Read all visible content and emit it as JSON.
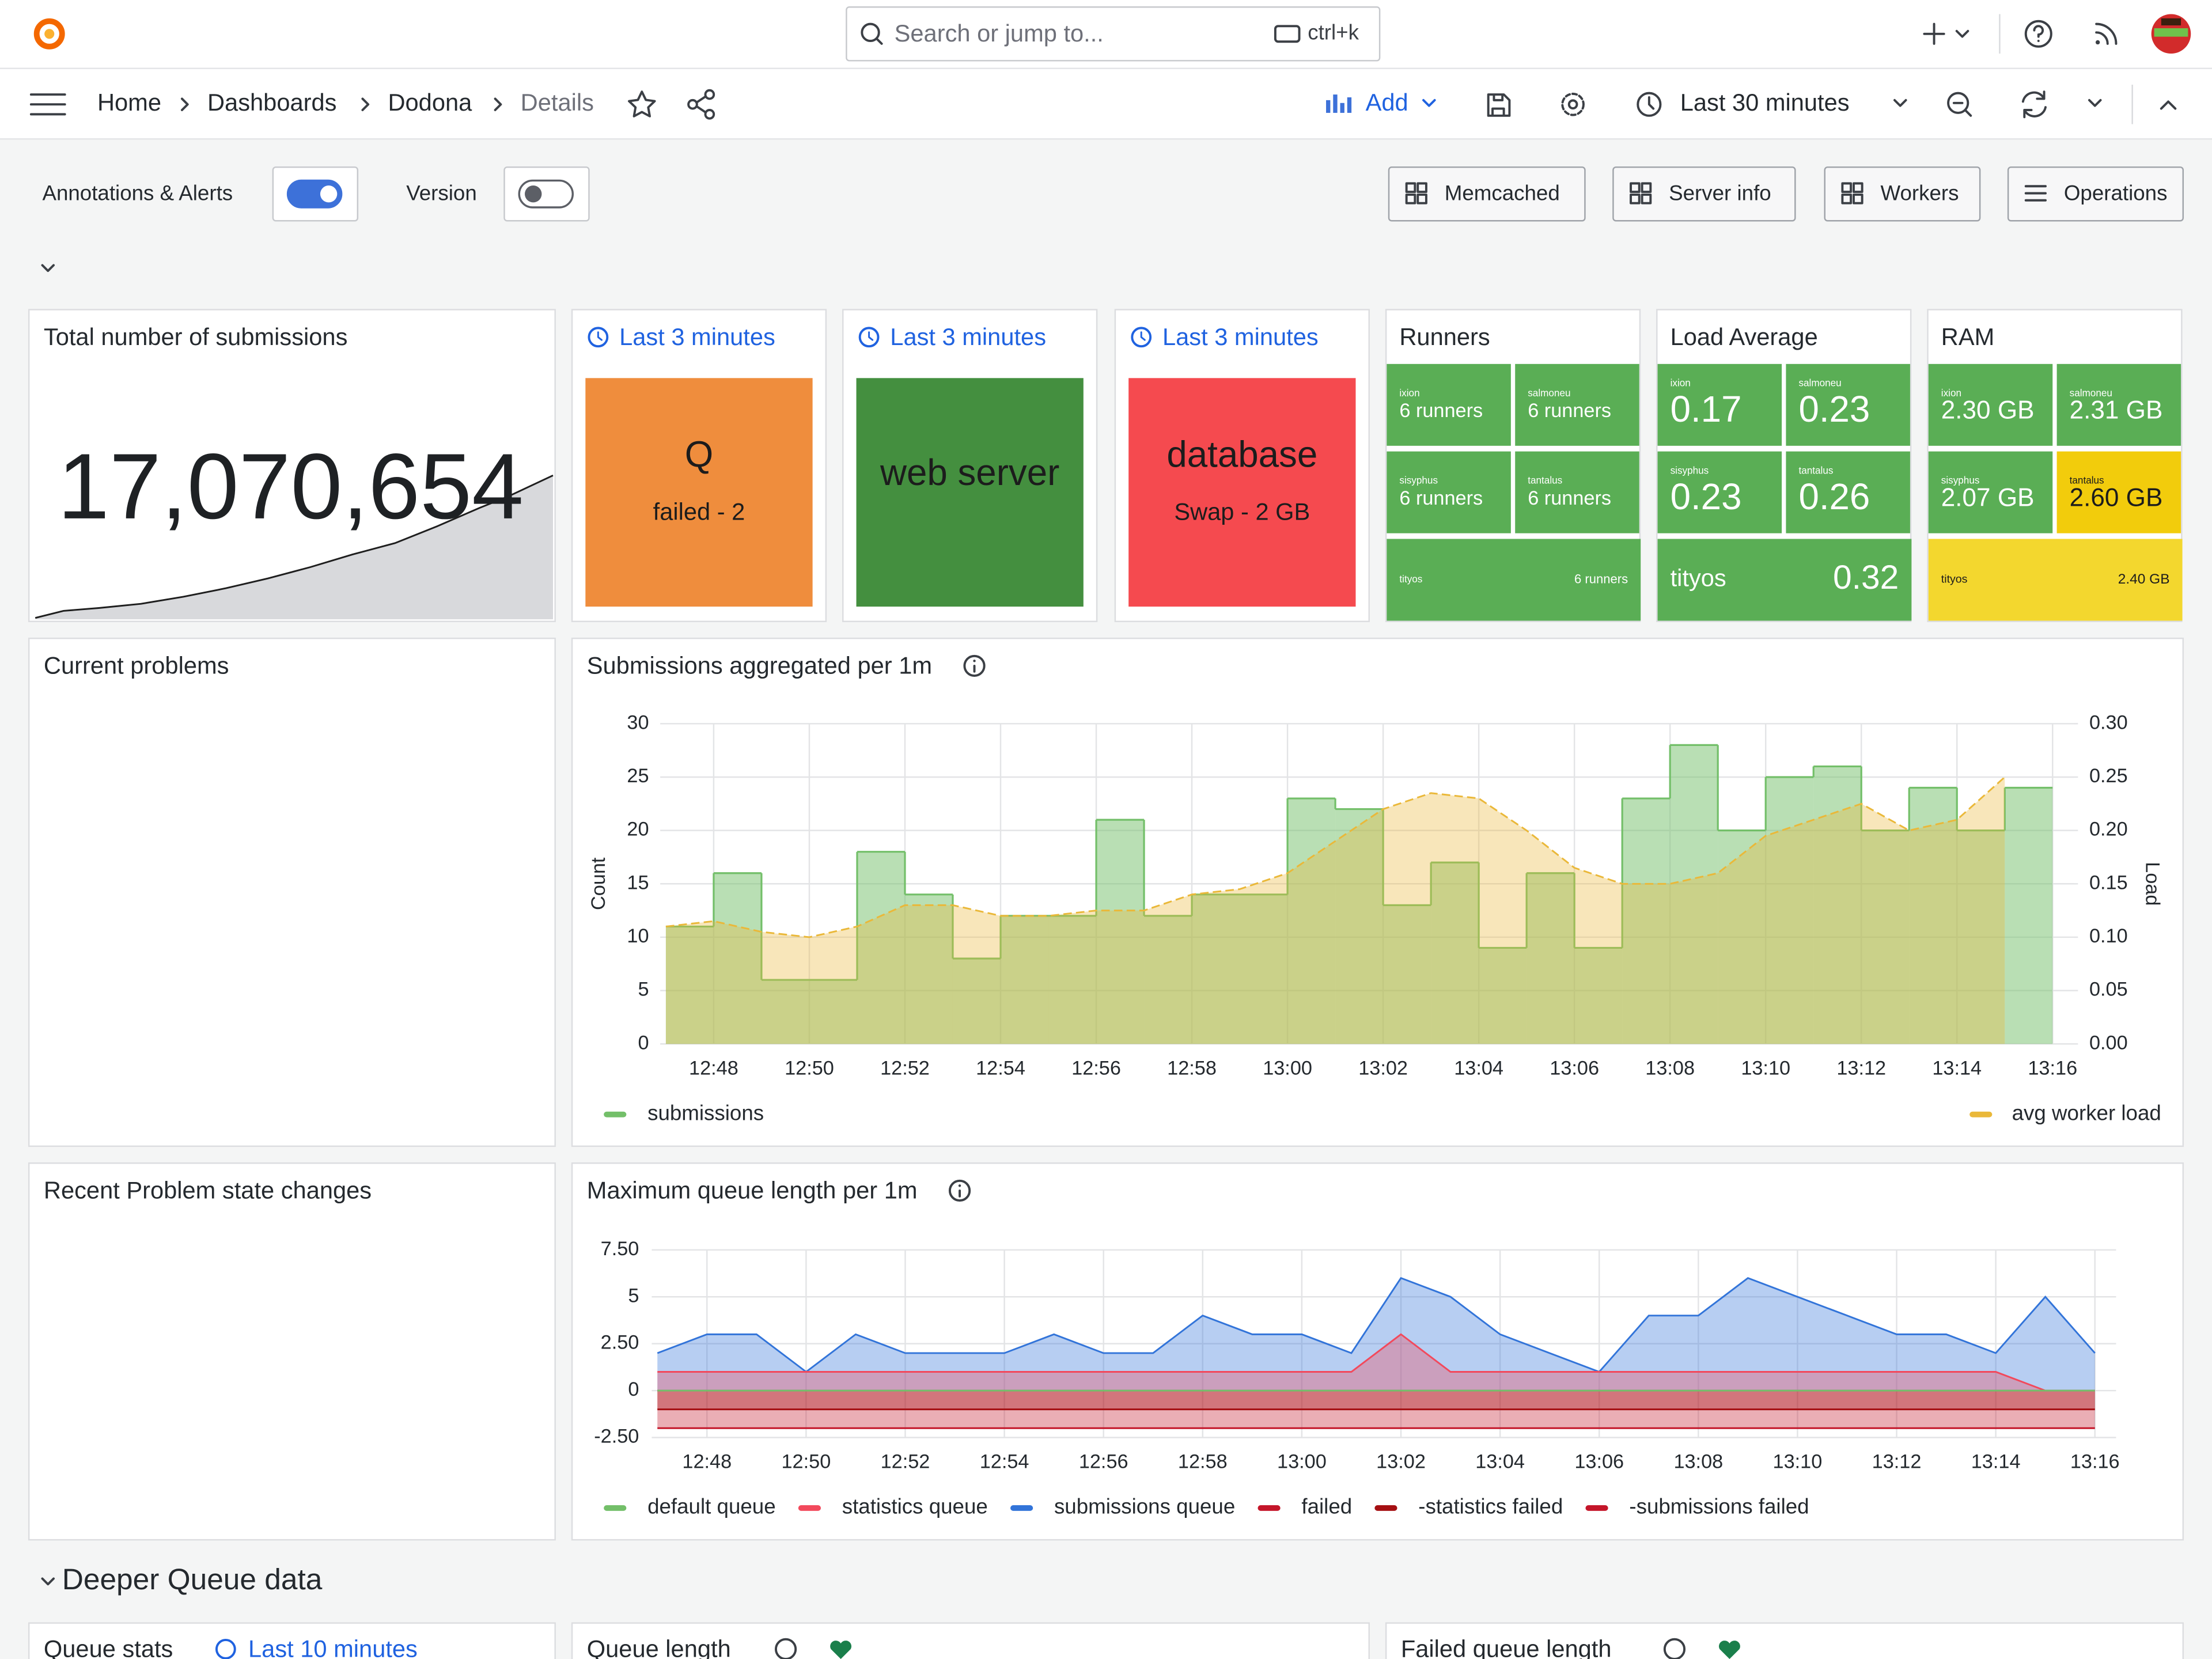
{
  "nav": {
    "search": "Search or jump to...",
    "shortcut": "ctrl+k",
    "breadcrumbs": [
      "Home",
      "Dashboards",
      "Dodona",
      "Details"
    ],
    "add": "Add",
    "time_range": "Last 30 minutes"
  },
  "controls": {
    "annotations": "Annotations & Alerts",
    "annotations_on": true,
    "version": "Version",
    "version_on": false,
    "links": [
      "Memcached",
      "Server info",
      "Workers",
      "Operations"
    ]
  },
  "total": {
    "title": "Total number of submissions",
    "value": "17,070,654"
  },
  "status": [
    {
      "title": "Last 3 minutes",
      "name": "Q",
      "detail": "failed - 2",
      "color": "#ef8d3d"
    },
    {
      "title": "Last 3 minutes",
      "name": "web server",
      "color": "#448f3f"
    },
    {
      "title": "Last 3 minutes",
      "name": "database",
      "detail": "Swap - 2 GB",
      "color": "#f54a4f"
    }
  ],
  "stats": [
    {
      "title": "Runners",
      "cells": [
        {
          "host": "ixion",
          "value": "6 runners",
          "color": "#5aae55"
        },
        {
          "host": "salmoneu",
          "value": "6 runners",
          "color": "#5aae55"
        },
        {
          "host": "sisyphus",
          "value": "6 runners",
          "color": "#5aae55"
        },
        {
          "host": "tantalus",
          "value": "6 runners",
          "color": "#5aae55"
        },
        {
          "host": "tityos",
          "value": "6 runners",
          "color": "#5aae55"
        }
      ]
    },
    {
      "title": "Load Average",
      "cells": [
        {
          "host": "ixion",
          "value": "0.17",
          "color": "#5aae55"
        },
        {
          "host": "salmoneu",
          "value": "0.23",
          "color": "#5aae55"
        },
        {
          "host": "sisyphus",
          "value": "0.23",
          "color": "#5aae55"
        },
        {
          "host": "tantalus",
          "value": "0.26",
          "color": "#5aae55"
        },
        {
          "host": "tityos",
          "value": "0.32",
          "color": "#5aae55"
        }
      ]
    },
    {
      "title": "RAM",
      "cells": [
        {
          "host": "ixion",
          "value": "2.30 GB",
          "color": "#5aae55"
        },
        {
          "host": "salmoneu",
          "value": "2.31 GB",
          "color": "#5aae55"
        },
        {
          "host": "sisyphus",
          "value": "2.07 GB",
          "color": "#5aae55"
        },
        {
          "host": "tantalus",
          "value": "2.60 GB",
          "color": "#f2cc0c"
        },
        {
          "host": "tityos",
          "value": "2.40 GB",
          "color": "#f3d72e"
        }
      ]
    }
  ],
  "problems": {
    "title": "Current problems"
  },
  "state_changes": {
    "title": "Recent Problem state changes"
  },
  "chart_data": [
    {
      "type": "timeseries",
      "title": "Submissions aggregated per 1m",
      "y_label": "Count",
      "y2_label": "Load",
      "grid": true,
      "legend": "bottom",
      "x": [
        "12:47",
        "12:48",
        "12:49",
        "12:50",
        "12:51",
        "12:52",
        "12:53",
        "12:54",
        "12:55",
        "12:56",
        "12:57",
        "12:58",
        "12:59",
        "13:00",
        "13:01",
        "13:02",
        "13:03",
        "13:04",
        "13:05",
        "13:06",
        "13:07",
        "13:08",
        "13:09",
        "13:10",
        "13:11",
        "13:12",
        "13:13",
        "13:14",
        "13:15"
      ],
      "xlim": [
        "12:47",
        "13:16"
      ],
      "xticks": [
        "12:48",
        "12:50",
        "12:52",
        "12:54",
        "12:56",
        "12:58",
        "13:00",
        "13:02",
        "13:04",
        "13:06",
        "13:08",
        "13:10",
        "13:12",
        "13:14",
        "13:16"
      ],
      "ylim": [
        0,
        30
      ],
      "yticks": [
        0,
        5,
        10,
        15,
        20,
        25,
        30
      ],
      "y2lim": [
        0,
        0.3
      ],
      "y2ticks": [
        {
          "value": 0,
          "label": "0.00"
        },
        {
          "value": 0.05,
          "label": "0.05"
        },
        {
          "value": 0.1,
          "label": "0.10"
        },
        {
          "value": 0.15,
          "label": "0.15"
        },
        {
          "value": 0.2,
          "label": "0.20"
        },
        {
          "value": 0.25,
          "label": "0.25"
        },
        {
          "value": 0.3,
          "label": "0.30"
        }
      ],
      "series": [
        {
          "name": "submissions",
          "color": "#73bf69",
          "step": true,
          "values": [
            11,
            16,
            6,
            6,
            18,
            14,
            8,
            12,
            12,
            21,
            12,
            14,
            14,
            23,
            22,
            13,
            17,
            9,
            16,
            9,
            23,
            28,
            20,
            25,
            26,
            20,
            24,
            20,
            24
          ]
        },
        {
          "name": "avg worker load",
          "color": "#eab839",
          "axis": "y2",
          "dash": true,
          "values": [
            0.11,
            0.115,
            0.105,
            0.1,
            0.11,
            0.13,
            0.13,
            0.12,
            0.12,
            0.125,
            0.125,
            0.14,
            0.145,
            0.16,
            0.19,
            0.22,
            0.235,
            0.23,
            0.2,
            0.165,
            0.15,
            0.15,
            0.16,
            0.195,
            0.21,
            0.225,
            0.2,
            0.21,
            0.25
          ]
        }
      ]
    },
    {
      "type": "timeseries",
      "title": "Maximum queue length per 1m",
      "grid": true,
      "legend": "bottom",
      "x": [
        "12:47",
        "12:48",
        "12:49",
        "12:50",
        "12:51",
        "12:52",
        "12:53",
        "12:54",
        "12:55",
        "12:56",
        "12:57",
        "12:58",
        "12:59",
        "13:00",
        "13:01",
        "13:02",
        "13:03",
        "13:04",
        "13:05",
        "13:06",
        "13:07",
        "13:08",
        "13:09",
        "13:10",
        "13:11",
        "13:12",
        "13:13",
        "13:14",
        "13:15",
        "13:16"
      ],
      "xlim": [
        "12:47",
        "13:16"
      ],
      "xticks": [
        "12:48",
        "12:50",
        "12:52",
        "12:54",
        "12:56",
        "12:58",
        "13:00",
        "13:02",
        "13:04",
        "13:06",
        "13:08",
        "13:10",
        "13:12",
        "13:14",
        "13:16"
      ],
      "ylim": [
        -2.5,
        7.5
      ],
      "yticks": [
        {
          "value": -2.5,
          "label": "-2.50"
        },
        0,
        {
          "value": 2.5,
          "label": "2.50"
        },
        5,
        {
          "value": 7.5,
          "label": "7.50"
        }
      ],
      "series": [
        {
          "name": "default queue",
          "color": "#73bf69",
          "values": [
            0,
            0,
            0,
            0,
            0,
            0,
            0,
            0,
            0,
            0,
            0,
            0,
            0,
            0,
            0,
            0,
            0,
            0,
            0,
            0,
            0,
            0,
            0,
            0,
            0,
            0,
            0,
            0,
            0,
            0
          ]
        },
        {
          "name": "statistics queue",
          "color": "#f2495c",
          "values": [
            1,
            1,
            1,
            1,
            1,
            1,
            1,
            1,
            1,
            1,
            1,
            1,
            1,
            1,
            1,
            3,
            1,
            1,
            1,
            1,
            1,
            1,
            1,
            1,
            1,
            1,
            1,
            1,
            0,
            0
          ]
        },
        {
          "name": "submissions queue",
          "color": "#3274d9",
          "values": [
            2,
            3,
            3,
            1,
            3,
            2,
            2,
            2,
            3,
            2,
            2,
            4,
            3,
            3,
            2,
            6,
            5,
            3,
            2,
            1,
            4,
            4,
            6,
            5,
            4,
            3,
            3,
            2,
            5,
            2
          ]
        },
        {
          "name": "failed",
          "color": "#c4162a",
          "values": [
            0,
            0,
            0,
            0,
            0,
            0,
            0,
            0,
            0,
            0,
            0,
            0,
            0,
            0,
            0,
            0,
            0,
            0,
            0,
            0,
            0,
            0,
            0,
            0,
            0,
            0,
            0,
            0,
            0,
            0
          ]
        },
        {
          "name": "-statistics failed",
          "color": "#a50f12",
          "values": [
            -1,
            -1,
            -1,
            -1,
            -1,
            -1,
            -1,
            -1,
            -1,
            -1,
            -1,
            -1,
            -1,
            -1,
            -1,
            -1,
            -1,
            -1,
            -1,
            -1,
            -1,
            -1,
            -1,
            -1,
            -1,
            -1,
            -1,
            -1,
            -1,
            -1
          ]
        },
        {
          "name": "-submissions failed",
          "color": "#c4162a",
          "values": [
            -2,
            -2,
            -2,
            -2,
            -2,
            -2,
            -2,
            -2,
            -2,
            -2,
            -2,
            -2,
            -2,
            -2,
            -2,
            -2,
            -2,
            -2,
            -2,
            -2,
            -2,
            -2,
            -2,
            -2,
            -2,
            -2,
            -2,
            -2,
            -2,
            -2
          ]
        }
      ]
    }
  ],
  "row": {
    "title": "Deeper Queue data"
  },
  "bottom": [
    {
      "title": "Queue stats",
      "time": "Last 10 minutes"
    },
    {
      "title": "Queue length"
    },
    {
      "title": "Failed queue length"
    }
  ]
}
